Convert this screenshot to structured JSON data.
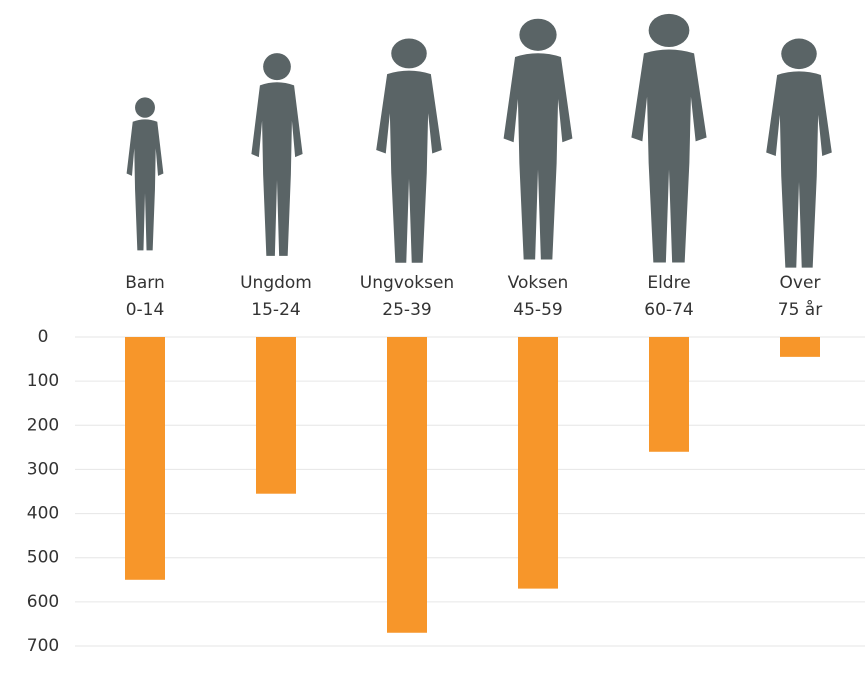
{
  "chart_data": {
    "type": "bar",
    "categories": [
      "Barn\n0-14",
      "Ungdom\n15-24",
      "Ungvoksen\n25-39",
      "Voksen\n45-59",
      "Eldre\n60-74",
      "Over\n75 år"
    ],
    "values": [
      550,
      355,
      670,
      570,
      260,
      45
    ],
    "color": "#f7962a",
    "ylim": [
      0,
      700
    ],
    "yticks": [
      0,
      100,
      200,
      300,
      400,
      500,
      600,
      700
    ],
    "y_inverted": true,
    "grid": true
  }
}
